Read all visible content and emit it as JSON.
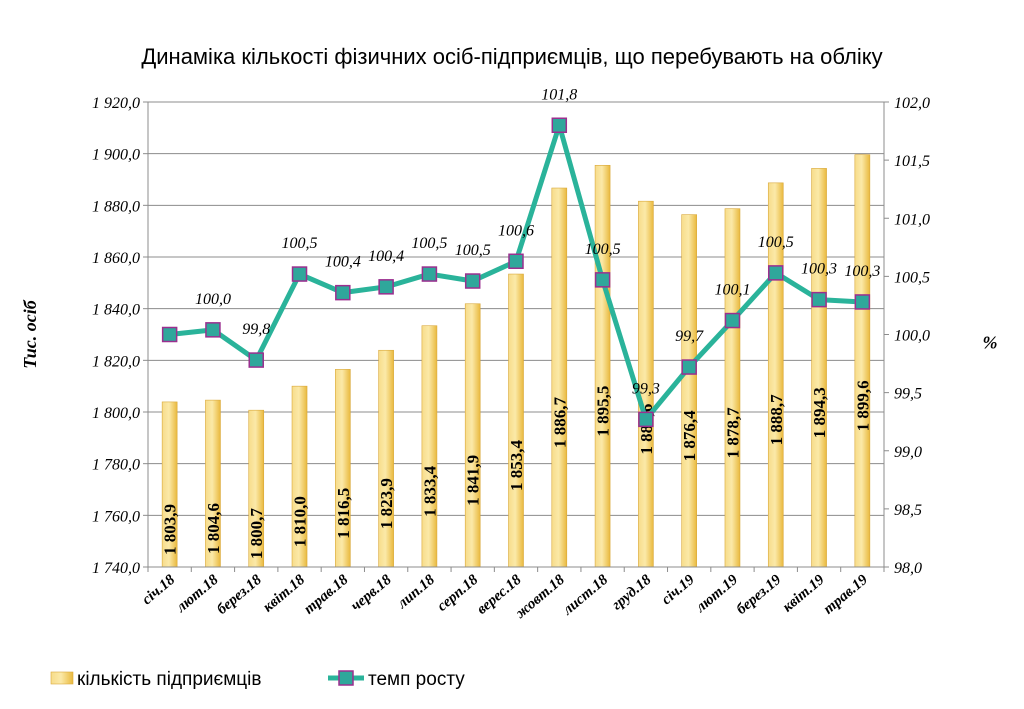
{
  "chart_data": {
    "type": "bar",
    "title": "Динаміка кількості фізичних осіб-підприємців, що перебувають на обліку",
    "categories": [
      "січ.18",
      "лют.18",
      "берез.18",
      "квіт.18",
      "трав.18",
      "черв.18",
      "лип.18",
      "серп.18",
      "верес.18",
      "жовт.18",
      "лист.18",
      "груд.18",
      "січ.19",
      "лют.19",
      "берез.19",
      "квіт.19",
      "трав.19"
    ],
    "ylabel": "Тис. осіб",
    "y2label": "%",
    "ylim": [
      1740,
      1920
    ],
    "y2lim": [
      98.0,
      102.0
    ],
    "yticks": [
      "1 740,0",
      "1 760,0",
      "1 780,0",
      "1 800,0",
      "1 820,0",
      "1 840,0",
      "1 860,0",
      "1 880,0",
      "1 900,0",
      "1 920,0"
    ],
    "y2ticks": [
      "98,0",
      "98,5",
      "99,0",
      "99,5",
      "100,0",
      "100,5",
      "101,0",
      "101,5",
      "102,0"
    ],
    "grid": "horizontal",
    "legend_position": "bottom",
    "series": [
      {
        "name": "кількість підприємців",
        "type": "bar",
        "axis": "left",
        "color": "#f2cd5c",
        "values": [
          1803.9,
          1804.6,
          1800.7,
          1810.0,
          1816.5,
          1823.9,
          1833.4,
          1841.9,
          1853.4,
          1886.7,
          1895.5,
          1881.6,
          1876.4,
          1878.7,
          1888.7,
          1894.3,
          1899.6
        ],
        "labels": [
          "1 803,9",
          "1 804,6",
          "1 800,7",
          "1 810,0",
          "1 816,5",
          "1 823,9",
          "1 833,4",
          "1 841,9",
          "1 853,4",
          "1 886,7",
          "1 895,5",
          "1 881,6",
          "1 876,4",
          "1 878,7",
          "1 888,7",
          "1 894,3",
          "1 899,6"
        ]
      },
      {
        "name": "темп росту",
        "type": "line",
        "axis": "right",
        "color": "#2ab39a",
        "marker_color": "#2fa79b",
        "marker_border": "#9b2f8f",
        "values": [
          100.0,
          100.04,
          99.78,
          100.52,
          100.36,
          100.41,
          100.52,
          100.46,
          100.63,
          101.8,
          100.47,
          99.27,
          99.72,
          100.12,
          100.53,
          100.3,
          100.28
        ],
        "labels": [
          "",
          "100,0",
          "99,8",
          "100,5",
          "100,4",
          "100,4",
          "100,5",
          "100,5",
          "100,6",
          "101,8",
          "100,5",
          "99,3",
          "99,7",
          "100,1",
          "100,5",
          "100,3",
          "100,3"
        ]
      }
    ]
  }
}
